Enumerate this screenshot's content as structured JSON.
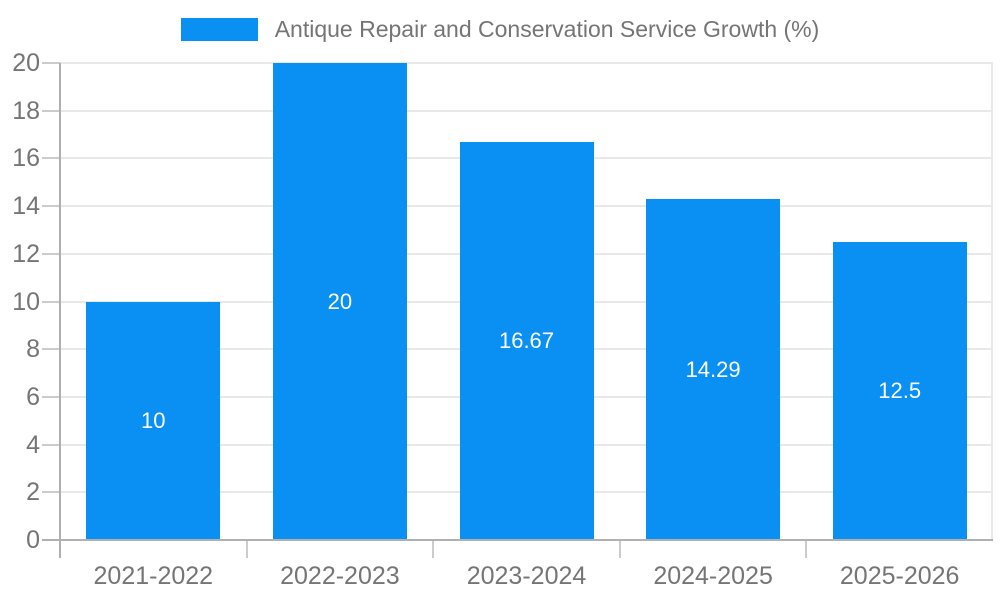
{
  "legend": {
    "label": "Antique Repair and Conservation Service Growth (%)",
    "position": "top"
  },
  "chart_data": {
    "type": "bar",
    "title": "Antique Repair and Conservation Service Growth (%)",
    "xlabel": "",
    "ylabel": "",
    "categories": [
      "2021-2022",
      "2022-2023",
      "2023-2024",
      "2024-2025",
      "2025-2026"
    ],
    "values": [
      10,
      20,
      16.67,
      14.29,
      12.5
    ],
    "value_labels": [
      "10",
      "20",
      "16.67",
      "14.29",
      "12.5"
    ],
    "ylim": [
      0,
      20
    ],
    "yticks": [
      0,
      2,
      4,
      6,
      8,
      10,
      12,
      14,
      16,
      18,
      20
    ],
    "grid": true,
    "legend_position": "top",
    "colors": {
      "bar": "#0a8ff2",
      "grid": "#e8e8e8",
      "tick": "#cccccc",
      "axis": "#b0b0b0",
      "text": "#757575",
      "bar_label": "#ffffff",
      "background": "#ffffff"
    }
  }
}
